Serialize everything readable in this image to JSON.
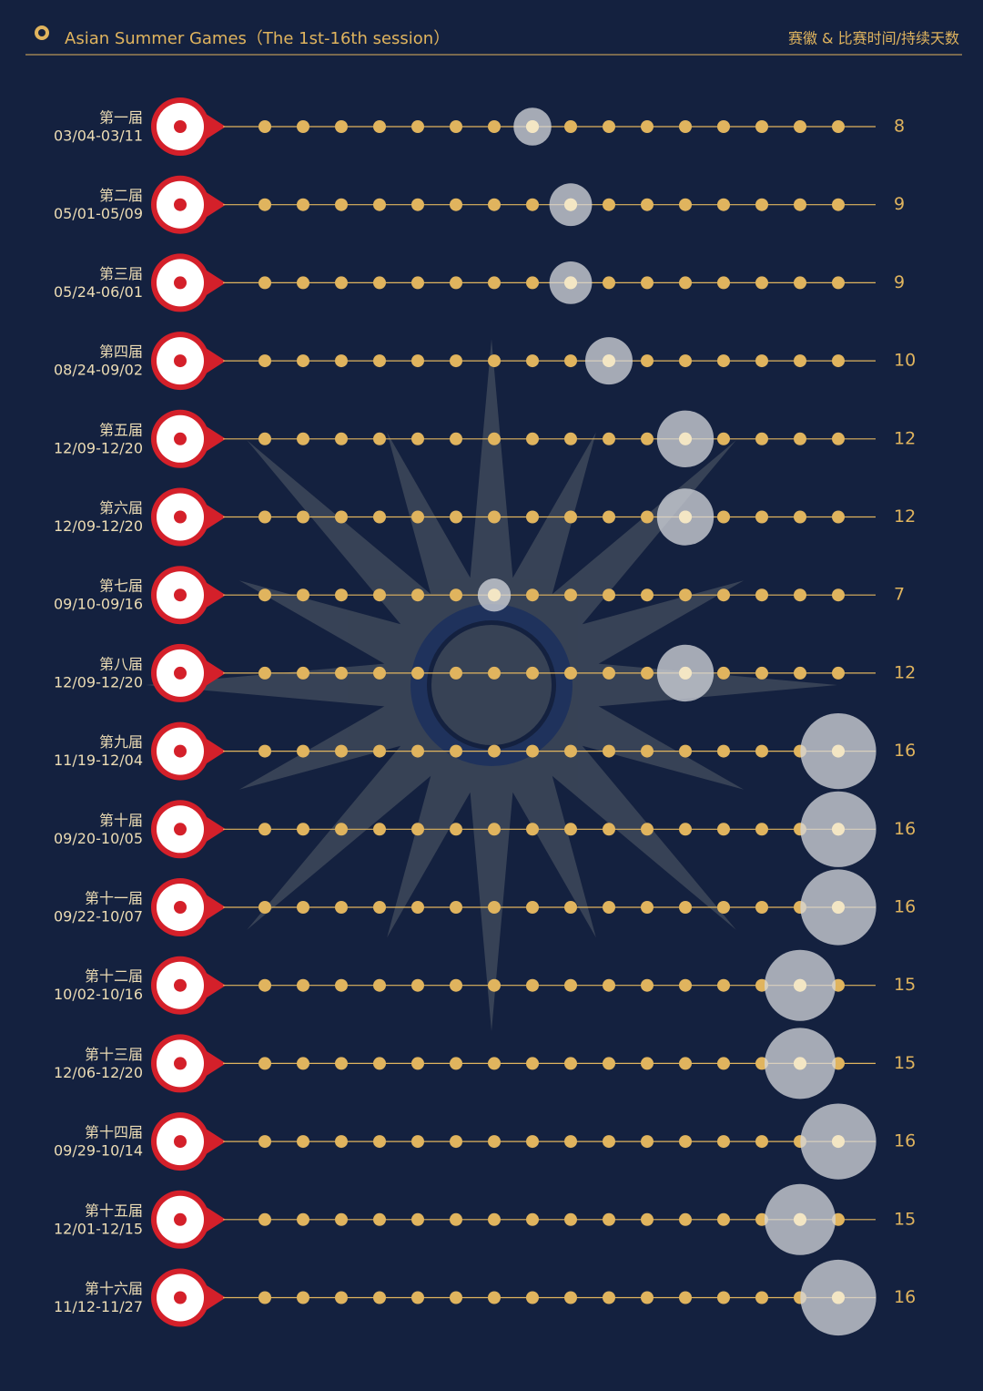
{
  "chart_data": {
    "type": "dot-row",
    "title": "Asian Summer Games（The 1st-16th session）",
    "subtitle": "赛徽 & 比赛时间/持续天数",
    "categories": [
      "第一届",
      "第二届",
      "第三届",
      "第四届",
      "第五届",
      "第六届",
      "第七届",
      "第八届",
      "第九届",
      "第十届",
      "第十一届",
      "第十二届",
      "第十三届",
      "第十四届",
      "第十五届",
      "第十六届"
    ],
    "dates": [
      "03/04-03/11",
      "05/01-05/09",
      "05/24-06/01",
      "08/24-09/02",
      "12/09-12/20",
      "12/09-12/20",
      "09/10-09/16",
      "12/09-12/20",
      "11/19-12/04",
      "09/20-10/05",
      "09/22-10/07",
      "10/02-10/16",
      "12/06-12/20",
      "09/29-10/14",
      "12/01-12/15",
      "11/12-11/27"
    ],
    "values": [
      8,
      9,
      9,
      10,
      12,
      12,
      7,
      12,
      16,
      16,
      16,
      15,
      15,
      16,
      15,
      16
    ],
    "xlim": [
      1,
      16
    ],
    "color": "#e0b45e",
    "bubble_color": "#d6d8de"
  }
}
